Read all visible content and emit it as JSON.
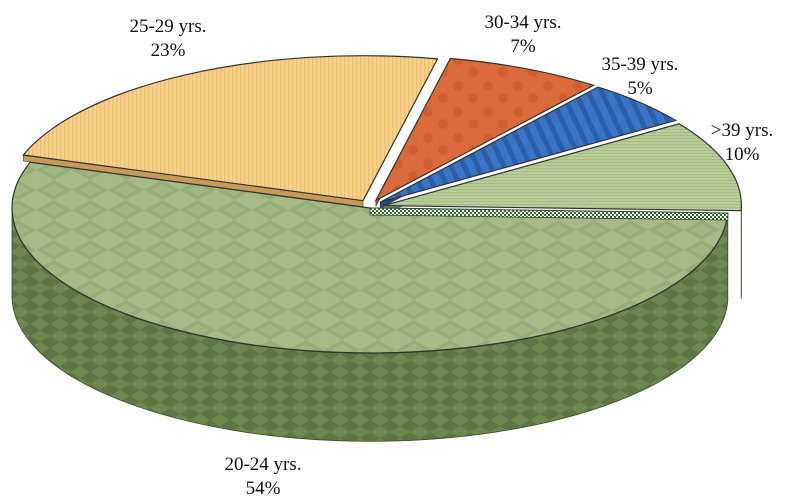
{
  "chart_data": {
    "type": "pie",
    "style": "3d-exploded",
    "title": "",
    "categories": [
      "20-24 yrs.",
      "25-29 yrs.",
      "30-34 yrs.",
      "35-39 yrs.",
      ">39 yrs."
    ],
    "values": [
      54,
      23,
      7,
      5,
      10
    ],
    "value_labels": [
      "54%",
      "23%",
      "7%",
      "5%",
      "10%"
    ],
    "colors": [
      "#9db37c",
      "#f6cf86",
      "#d9683a",
      "#2f68b8",
      "#b3c993"
    ],
    "legend": "none"
  }
}
